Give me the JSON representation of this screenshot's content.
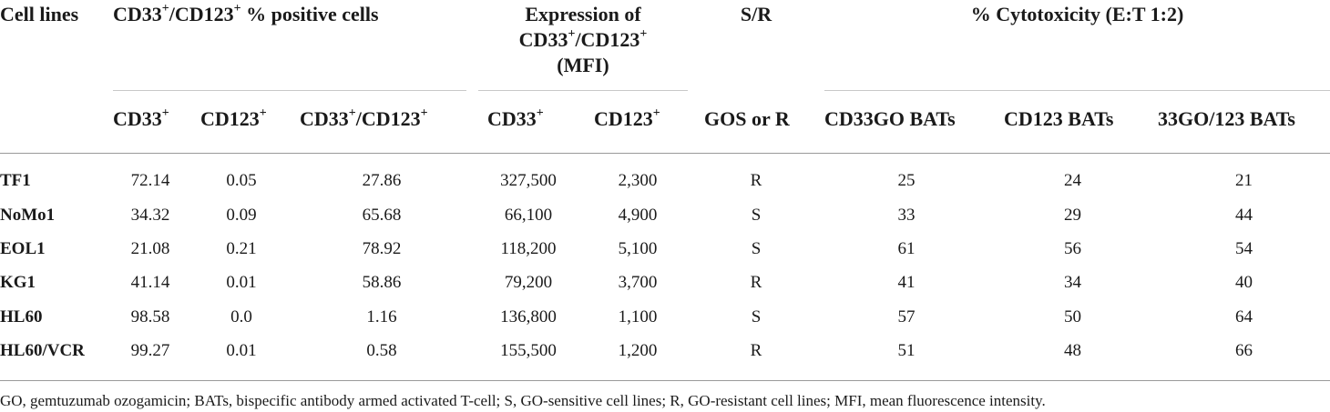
{
  "headers": {
    "cell_lines": "Cell lines",
    "positive": {
      "a": "CD33",
      "sa": "+",
      "b": "/CD123",
      "sb": "+",
      "c": " % positive cells"
    },
    "expression": {
      "l1": "Expression of",
      "l2a": "CD33",
      "l2sa": "+",
      "l2b": "/CD123",
      "l2sb": "+",
      "l3": "(MFI)"
    },
    "sr": "S/R",
    "cytotox": "% Cytotoxicity (E:T 1:2)"
  },
  "subheaders": {
    "cd33": {
      "t": "CD33",
      "s": "+"
    },
    "cd123": {
      "t": "CD123",
      "s": "+"
    },
    "both": {
      "a": "CD33",
      "sa": "+",
      "b": "/CD123",
      "sb": "+"
    },
    "mfi_cd33": {
      "t": "CD33",
      "s": "+"
    },
    "mfi_cd123": {
      "t": "CD123",
      "s": "+"
    },
    "gos": "GOS or R",
    "cd33go": "CD33GO BATs",
    "cd123bats": "CD123 BATs",
    "combo": "33GO/123 BATs"
  },
  "rows": [
    {
      "line": "TF1",
      "cd33": "72.14",
      "cd123": "0.05",
      "both": "27.86",
      "mfi33": "327,500",
      "mfi123": "2,300",
      "sr": "R",
      "go": "25",
      "b123": "24",
      "combo": "21"
    },
    {
      "line": "NoMo1",
      "cd33": "34.32",
      "cd123": "0.09",
      "both": "65.68",
      "mfi33": "66,100",
      "mfi123": "4,900",
      "sr": "S",
      "go": "33",
      "b123": "29",
      "combo": "44"
    },
    {
      "line": "EOL1",
      "cd33": "21.08",
      "cd123": "0.21",
      "both": "78.92",
      "mfi33": "118,200",
      "mfi123": "5,100",
      "sr": "S",
      "go": "61",
      "b123": "56",
      "combo": "54"
    },
    {
      "line": "KG1",
      "cd33": "41.14",
      "cd123": "0.01",
      "both": "58.86",
      "mfi33": "79,200",
      "mfi123": "3,700",
      "sr": "R",
      "go": "41",
      "b123": "34",
      "combo": "40"
    },
    {
      "line": "HL60",
      "cd33": "98.58",
      "cd123": "0.0",
      "both": "1.16",
      "mfi33": "136,800",
      "mfi123": "1,100",
      "sr": "S",
      "go": "57",
      "b123": "50",
      "combo": "64"
    },
    {
      "line": "HL60/VCR",
      "cd33": "99.27",
      "cd123": "0.01",
      "both": "0.58",
      "mfi33": "155,500",
      "mfi123": "1,200",
      "sr": "R",
      "go": "51",
      "b123": "48",
      "combo": "66"
    }
  ],
  "footnote": "GO, gemtuzumab ozogamicin; BATs, bispecific antibody armed activated T-cell; S, GO-sensitive cell lines; R, GO-resistant cell lines; MFI, mean fluorescence intensity."
}
